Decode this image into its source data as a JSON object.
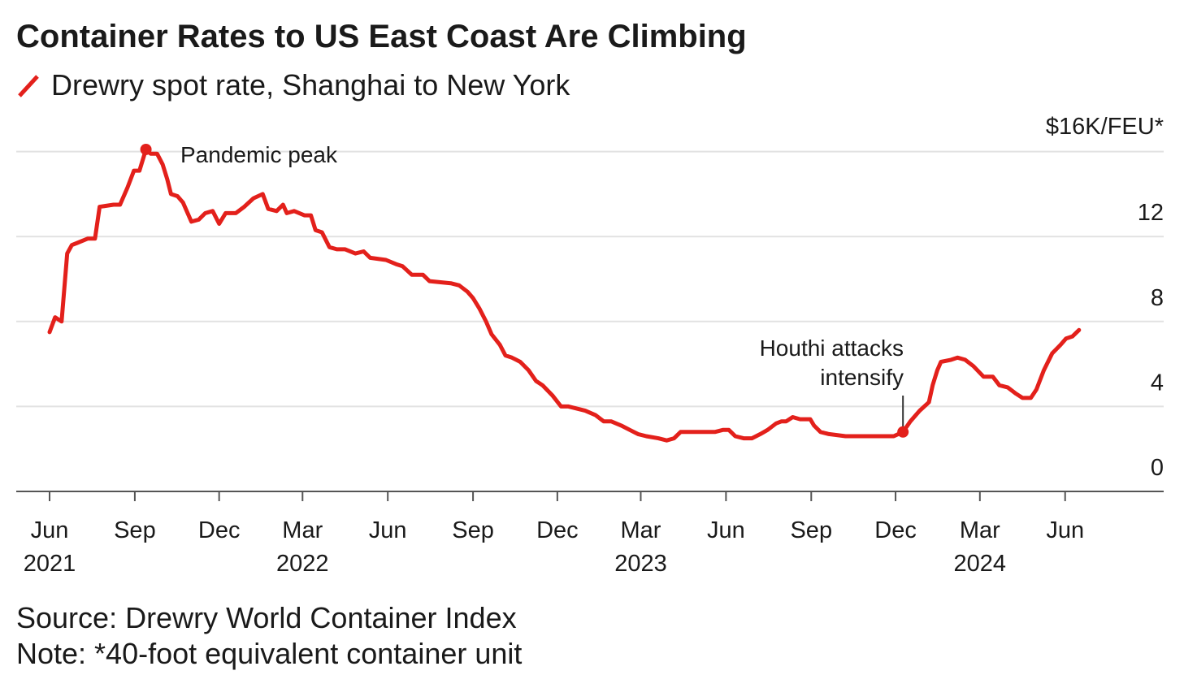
{
  "chart_data": {
    "type": "line",
    "title": "Container Rates to US East Coast Are Climbing",
    "legend": {
      "series_name": "Drewry spot rate, Shanghai to New York",
      "color": "#e3201b",
      "placement": "top-left"
    },
    "y_unit_label": "$16K/FEU*",
    "ylim": [
      0,
      16
    ],
    "y_ticks": [
      "0",
      "4",
      "8",
      "12"
    ],
    "y_tick_values": [
      0,
      4,
      8,
      12,
      16
    ],
    "y_position": "right",
    "grid": true,
    "x_ticks": [
      {
        "date": "2021-06-01",
        "month": "Jun",
        "year": "2021"
      },
      {
        "date": "2021-09-01",
        "month": "Sep",
        "year": ""
      },
      {
        "date": "2021-12-01",
        "month": "Dec",
        "year": ""
      },
      {
        "date": "2022-03-01",
        "month": "Mar",
        "year": "2022"
      },
      {
        "date": "2022-06-01",
        "month": "Jun",
        "year": ""
      },
      {
        "date": "2022-09-01",
        "month": "Sep",
        "year": ""
      },
      {
        "date": "2022-12-01",
        "month": "Dec",
        "year": ""
      },
      {
        "date": "2023-03-01",
        "month": "Mar",
        "year": "2023"
      },
      {
        "date": "2023-06-01",
        "month": "Jun",
        "year": ""
      },
      {
        "date": "2023-09-01",
        "month": "Sep",
        "year": ""
      },
      {
        "date": "2023-12-01",
        "month": "Dec",
        "year": ""
      },
      {
        "date": "2024-03-01",
        "month": "Mar",
        "year": "2024"
      },
      {
        "date": "2024-06-01",
        "month": "Jun",
        "year": ""
      }
    ],
    "annotations": [
      {
        "date": "2021-09-13",
        "value": 16.1,
        "lines": [
          "Pandemic peak"
        ]
      },
      {
        "date": "2023-12-09",
        "value": 2.8,
        "lines": [
          "Houthi attacks",
          "intensify"
        ]
      }
    ],
    "series": [
      {
        "name": "Drewry spot rate, Shanghai to New York",
        "x": [
          "2021-06-01",
          "2021-06-07",
          "2021-06-14",
          "2021-06-20",
          "2021-06-25",
          "2021-07-01",
          "2021-07-12",
          "2021-07-20",
          "2021-07-25",
          "2021-08-09",
          "2021-08-16",
          "2021-08-24",
          "2021-08-31",
          "2021-09-06",
          "2021-09-13",
          "2021-09-18",
          "2021-09-25",
          "2021-10-01",
          "2021-10-06",
          "2021-10-10",
          "2021-10-17",
          "2021-10-23",
          "2021-11-01",
          "2021-11-09",
          "2021-11-16",
          "2021-11-24",
          "2021-12-01",
          "2021-12-08",
          "2021-12-19",
          "2021-12-28",
          "2022-01-07",
          "2022-01-17",
          "2022-01-23",
          "2022-02-01",
          "2022-02-08",
          "2022-02-12",
          "2022-02-20",
          "2022-03-03",
          "2022-03-10",
          "2022-03-15",
          "2022-03-22",
          "2022-03-30",
          "2022-04-07",
          "2022-04-16",
          "2022-04-27",
          "2022-05-06",
          "2022-05-13",
          "2022-05-30",
          "2022-06-10",
          "2022-06-17",
          "2022-06-27",
          "2022-07-09",
          "2022-07-16",
          "2022-08-08",
          "2022-08-17",
          "2022-08-26",
          "2022-09-01",
          "2022-09-08",
          "2022-09-15",
          "2022-09-21",
          "2022-09-30",
          "2022-10-06",
          "2022-10-13",
          "2022-10-22",
          "2022-10-31",
          "2022-11-08",
          "2022-11-15",
          "2022-11-26",
          "2022-12-05",
          "2022-12-13",
          "2022-12-31",
          "2023-01-11",
          "2023-01-20",
          "2023-01-28",
          "2023-02-08",
          "2023-02-17",
          "2023-02-26",
          "2023-03-07",
          "2023-03-20",
          "2023-03-29",
          "2023-04-06",
          "2023-04-13",
          "2023-04-20",
          "2023-05-03",
          "2023-05-20",
          "2023-05-29",
          "2023-06-04",
          "2023-06-11",
          "2023-06-20",
          "2023-06-29",
          "2023-07-08",
          "2023-07-16",
          "2023-07-25",
          "2023-07-31",
          "2023-08-05",
          "2023-08-12",
          "2023-08-20",
          "2023-08-31",
          "2023-09-04",
          "2023-09-11",
          "2023-09-20",
          "2023-10-08",
          "2023-10-16",
          "2023-10-25",
          "2023-11-07",
          "2023-11-20",
          "2023-11-29",
          "2023-12-09",
          "2023-12-17",
          "2023-12-27",
          "2024-01-06",
          "2024-01-10",
          "2024-01-15",
          "2024-01-19",
          "2024-01-30",
          "2024-02-06",
          "2024-02-14",
          "2024-02-23",
          "2024-03-05",
          "2024-03-15",
          "2024-03-22",
          "2024-03-31",
          "2024-04-09",
          "2024-04-16",
          "2024-04-25",
          "2024-05-01",
          "2024-05-09",
          "2024-05-18",
          "2024-05-27",
          "2024-06-02",
          "2024-06-09",
          "2024-06-16"
        ],
        "values": [
          7.5,
          8.2,
          8.0,
          11.2,
          11.6,
          11.7,
          11.9,
          11.9,
          13.4,
          13.5,
          13.5,
          14.3,
          15.1,
          15.1,
          16.1,
          15.9,
          15.9,
          15.4,
          14.7,
          14.0,
          13.9,
          13.6,
          12.7,
          12.8,
          13.1,
          13.2,
          12.6,
          13.1,
          13.1,
          13.4,
          13.8,
          14.0,
          13.3,
          13.2,
          13.5,
          13.1,
          13.2,
          13.0,
          13.0,
          12.3,
          12.2,
          11.5,
          11.4,
          11.4,
          11.2,
          11.3,
          11.0,
          10.9,
          10.7,
          10.6,
          10.2,
          10.2,
          9.9,
          9.8,
          9.7,
          9.4,
          9.1,
          8.6,
          8.0,
          7.4,
          6.9,
          6.4,
          6.3,
          6.1,
          5.7,
          5.2,
          5.0,
          4.5,
          4.0,
          4.0,
          3.8,
          3.6,
          3.3,
          3.3,
          3.1,
          2.9,
          2.7,
          2.6,
          2.5,
          2.4,
          2.5,
          2.8,
          2.8,
          2.8,
          2.8,
          2.9,
          2.9,
          2.6,
          2.5,
          2.5,
          2.7,
          2.9,
          3.2,
          3.3,
          3.3,
          3.5,
          3.4,
          3.4,
          3.1,
          2.8,
          2.7,
          2.6,
          2.6,
          2.6,
          2.6,
          2.6,
          2.6,
          2.8,
          3.3,
          3.8,
          4.2,
          5.0,
          5.7,
          6.1,
          6.2,
          6.3,
          6.2,
          5.9,
          5.4,
          5.4,
          5.0,
          4.9,
          4.6,
          4.4,
          4.4,
          4.8,
          5.7,
          6.5,
          6.9,
          7.2,
          7.3,
          7.6
        ]
      }
    ],
    "source": "Source: Drewry World Container Index",
    "note": "Note: *40-foot equivalent container unit"
  }
}
